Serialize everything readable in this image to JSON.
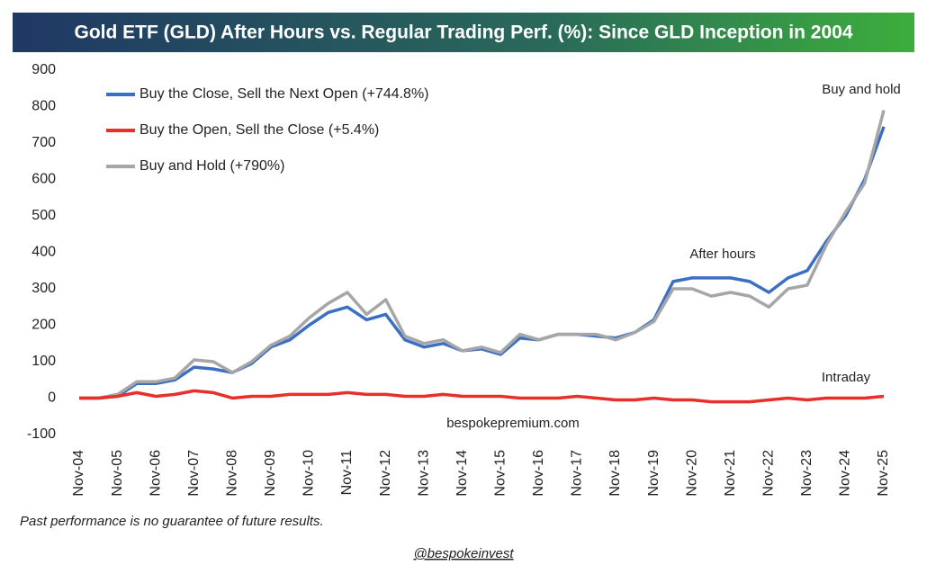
{
  "chart_data": {
    "type": "line",
    "title": "Gold ETF (GLD) After Hours vs. Regular Trading Perf. (%): Since GLD Inception in 2004",
    "categories": [
      "Nov-04",
      null,
      "Nov-05",
      null,
      "Nov-06",
      null,
      "Nov-07",
      null,
      "Nov-08",
      null,
      "Nov-09",
      null,
      "Nov-10",
      null,
      "Nov-11",
      null,
      "Nov-12",
      null,
      "Nov-13",
      null,
      "Nov-14",
      null,
      "Nov-15",
      null,
      "Nov-16",
      null,
      "Nov-17",
      null,
      "Nov-18",
      null,
      "Nov-19",
      null,
      "Nov-20",
      null,
      "Nov-21",
      null,
      "Nov-22",
      null,
      "Nov-23",
      null,
      "Nov-24",
      null,
      "Nov-25"
    ],
    "series": [
      {
        "name": "Buy the Close, Sell the Next Open (+744.8%)",
        "color": "#3a6fc4",
        "values": [
          0,
          0,
          5,
          40,
          40,
          50,
          85,
          80,
          70,
          95,
          140,
          160,
          200,
          235,
          250,
          215,
          230,
          160,
          140,
          150,
          130,
          135,
          120,
          165,
          160,
          175,
          175,
          170,
          165,
          180,
          215,
          320,
          330,
          330,
          330,
          320,
          290,
          330,
          350,
          430,
          500,
          600,
          745
        ]
      },
      {
        "name": "Buy the Open, Sell the Close (+5.4%)",
        "color": "#e8302a",
        "values": [
          0,
          0,
          5,
          15,
          5,
          10,
          20,
          15,
          0,
          5,
          5,
          10,
          10,
          10,
          15,
          10,
          10,
          5,
          5,
          10,
          5,
          5,
          5,
          0,
          0,
          0,
          5,
          0,
          -5,
          -5,
          0,
          -5,
          -5,
          -10,
          -10,
          -10,
          -5,
          0,
          -5,
          0,
          0,
          0,
          5
        ]
      },
      {
        "name": "Buy and Hold (+790%)",
        "color": "#a6a6a6",
        "values": [
          0,
          0,
          10,
          45,
          45,
          55,
          105,
          100,
          70,
          100,
          145,
          170,
          220,
          260,
          290,
          230,
          270,
          170,
          150,
          160,
          130,
          140,
          125,
          175,
          160,
          175,
          175,
          175,
          160,
          180,
          210,
          300,
          300,
          280,
          290,
          280,
          250,
          300,
          310,
          420,
          510,
          590,
          790
        ]
      }
    ],
    "ylim": [
      -100,
      900
    ],
    "yticks": [
      -100,
      0,
      100,
      200,
      300,
      400,
      500,
      600,
      700,
      800,
      900
    ],
    "grid": false,
    "legend": "upper left",
    "annotations": [
      "Buy and hold",
      "After hours",
      "Intraday",
      "bespokepremium.com"
    ],
    "footnote": "Past performance is no guarantee of future results.",
    "credit": "@bespokeinvest"
  }
}
